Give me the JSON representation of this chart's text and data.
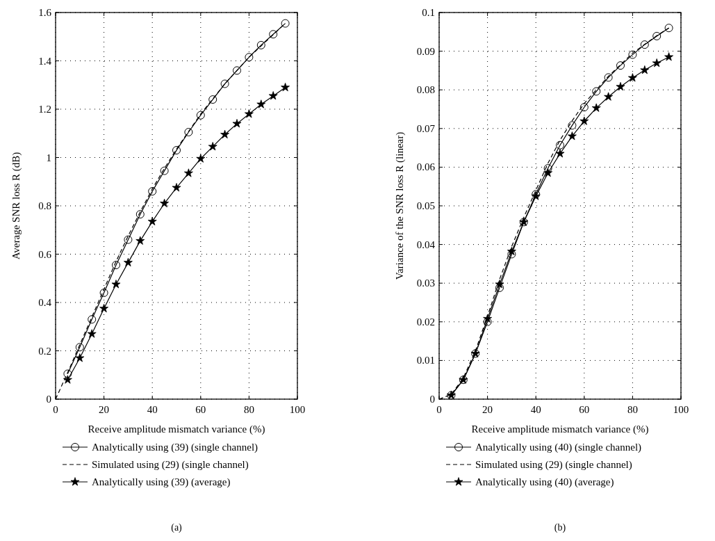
{
  "chart_data": [
    {
      "type": "line",
      "xlabel": "Receive amplitude mismatch variance (%)",
      "ylabel": "Average SNR loss R (dB)",
      "xlim": [
        0,
        100
      ],
      "xticks": [
        0,
        20,
        40,
        60,
        80,
        100
      ],
      "ylim": [
        0,
        1.6
      ],
      "yticks": [
        0,
        0.2,
        0.4,
        0.6,
        0.8,
        1,
        1.2,
        1.4,
        1.6
      ],
      "grid": true,
      "legend": "bottom",
      "annotations": [
        "(a)"
      ],
      "x": [
        5,
        10,
        15,
        20,
        25,
        30,
        35,
        40,
        45,
        50,
        55,
        60,
        65,
        70,
        75,
        80,
        85,
        90,
        95
      ],
      "series": [
        {
          "name": "Analytically using (39) (single channel)",
          "color": "#000000",
          "marker": "circle",
          "line_style": "solid",
          "values": [
            0.105,
            0.215,
            0.33,
            0.44,
            0.555,
            0.66,
            0.765,
            0.86,
            0.945,
            1.03,
            1.105,
            1.175,
            1.24,
            1.305,
            1.36,
            1.415,
            1.465,
            1.51,
            1.555
          ]
        },
        {
          "name": "Simulated using (29) (single channel)",
          "color": "#000000",
          "marker": "none",
          "line_style": "dashed",
          "x": [
            0,
            5,
            10,
            15,
            20,
            25,
            30,
            35,
            40,
            45,
            50,
            60,
            70,
            80,
            95
          ],
          "values": [
            0,
            0.11,
            0.225,
            0.34,
            0.455,
            0.57,
            0.675,
            0.775,
            0.87,
            0.955,
            1.035,
            1.18,
            1.305,
            1.415,
            1.555
          ]
        },
        {
          "name": "Analytically using (39) (average)",
          "color": "#000000",
          "marker": "star",
          "line_style": "solid",
          "values": [
            0.08,
            0.17,
            0.27,
            0.375,
            0.475,
            0.565,
            0.655,
            0.735,
            0.81,
            0.875,
            0.935,
            0.995,
            1.045,
            1.095,
            1.14,
            1.18,
            1.22,
            1.255,
            1.29
          ]
        }
      ]
    },
    {
      "type": "line",
      "xlabel": "Receive amplitude mismatch variance (%)",
      "ylabel": "Variance of the SNR loss R (linear)",
      "xlim": [
        0,
        100
      ],
      "xticks": [
        0,
        20,
        40,
        60,
        80,
        100
      ],
      "ylim": [
        0,
        0.1
      ],
      "yticks": [
        0,
        0.01,
        0.02,
        0.03,
        0.04,
        0.05,
        0.06,
        0.07,
        0.08,
        0.09,
        0.1
      ],
      "grid": true,
      "legend": "bottom",
      "annotations": [
        "(b)"
      ],
      "x": [
        5,
        10,
        15,
        20,
        25,
        30,
        35,
        40,
        45,
        50,
        55,
        60,
        65,
        70,
        75,
        80,
        85,
        90,
        95
      ],
      "series": [
        {
          "name": "Analytically using (40) (single channel)",
          "color": "#000000",
          "marker": "circle",
          "line_style": "solid",
          "values": [
            0.001,
            0.005,
            0.0118,
            0.02,
            0.0288,
            0.0375,
            0.0458,
            0.053,
            0.0597,
            0.0657,
            0.0708,
            0.0755,
            0.0796,
            0.0832,
            0.0863,
            0.0891,
            0.0917,
            0.0939,
            0.096
          ]
        },
        {
          "name": "Simulated using (29) (single channel)",
          "color": "#000000",
          "marker": "none",
          "line_style": "dashed",
          "x": [
            0,
            5,
            10,
            15,
            20,
            25,
            30,
            35,
            40,
            45,
            50,
            55,
            60,
            70,
            80,
            90,
            95
          ],
          "values": [
            0,
            0.0012,
            0.0055,
            0.0125,
            0.0215,
            0.031,
            0.0395,
            0.047,
            0.054,
            0.061,
            0.067,
            0.072,
            0.0765,
            0.0835,
            0.0895,
            0.094,
            0.096
          ]
        },
        {
          "name": "Analytically using (40) (average)",
          "color": "#000000",
          "marker": "star",
          "line_style": "solid",
          "values": [
            0.001,
            0.005,
            0.0118,
            0.0208,
            0.0297,
            0.0382,
            0.0458,
            0.0525,
            0.0585,
            0.0635,
            0.068,
            0.0719,
            0.0753,
            0.0782,
            0.0808,
            0.0831,
            0.0851,
            0.0869,
            0.0885
          ]
        }
      ]
    }
  ]
}
